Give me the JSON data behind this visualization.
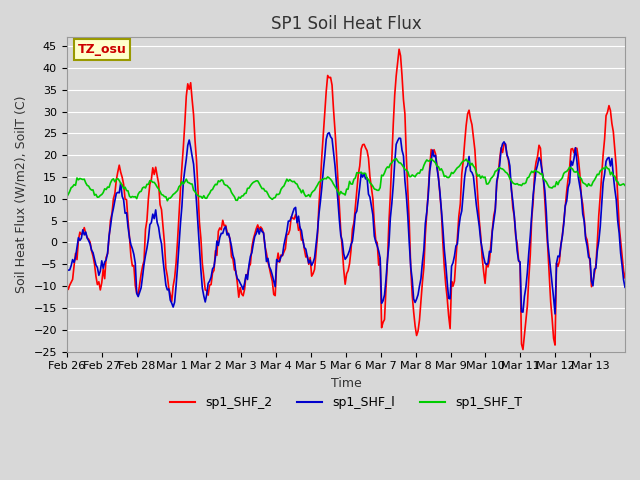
{
  "title": "SP1 Soil Heat Flux",
  "ylabel": "Soil Heat Flux (W/m2), SoilT (C)",
  "xlabel": "Time",
  "ylim": [
    -25,
    47
  ],
  "yticks": [
    -25,
    -20,
    -15,
    -10,
    -5,
    0,
    5,
    10,
    15,
    20,
    25,
    30,
    35,
    40,
    45
  ],
  "xtick_labels": [
    "Feb 26",
    "Feb 27",
    "Feb 28",
    "Mar 1",
    "Mar 2",
    "Mar 3",
    "Mar 4",
    "Mar 5",
    "Mar 6",
    "Mar 7",
    "Mar 8",
    "Mar 9",
    "Mar 10",
    "Mar 11",
    "Mar 12",
    "Mar 13"
  ],
  "xtick_positions": [
    0,
    1,
    2,
    3,
    4,
    5,
    6,
    7,
    8,
    9,
    10,
    11,
    12,
    13,
    14,
    15
  ],
  "line_colors": {
    "sp1_SHF_2": "#ff0000",
    "sp1_SHF_l": "#0000cc",
    "sp1_SHF_T": "#00cc00"
  },
  "line_width": 1.2,
  "plot_bg_color": "#d8d8d8",
  "grid_color": "#ffffff",
  "annotation_text": "TZ_osu",
  "annotation_color": "#cc0000",
  "annotation_bg": "#ffffcc",
  "legend_entries": [
    "sp1_SHF_2",
    "sp1_SHF_l",
    "sp1_SHF_T"
  ],
  "day_params": [
    [
      3,
      -11,
      2,
      -7,
      12.5
    ],
    [
      17,
      -9,
      12,
      -5,
      12.5
    ],
    [
      17,
      -12,
      6,
      -13,
      12.0
    ],
    [
      36,
      -12,
      23,
      -15,
      12.0
    ],
    [
      5,
      -12,
      3,
      -10,
      12.0
    ],
    [
      4,
      -12,
      3,
      -10,
      12.0
    ],
    [
      5,
      -5,
      7,
      -5,
      12.5
    ],
    [
      38,
      -9,
      25,
      -5,
      13.0
    ],
    [
      22,
      -6,
      15,
      -4,
      14.0
    ],
    [
      43,
      -20,
      24,
      -14,
      17.0
    ],
    [
      22,
      -20,
      20,
      -13,
      17.0
    ],
    [
      30,
      -10,
      18,
      -5,
      17.0
    ],
    [
      23,
      -5,
      23,
      -5,
      15.0
    ],
    [
      22,
      -25,
      19,
      -16,
      14.5
    ],
    [
      22,
      -5,
      20,
      -5,
      15.0
    ],
    [
      31,
      -10,
      20,
      -10,
      15.0
    ]
  ]
}
